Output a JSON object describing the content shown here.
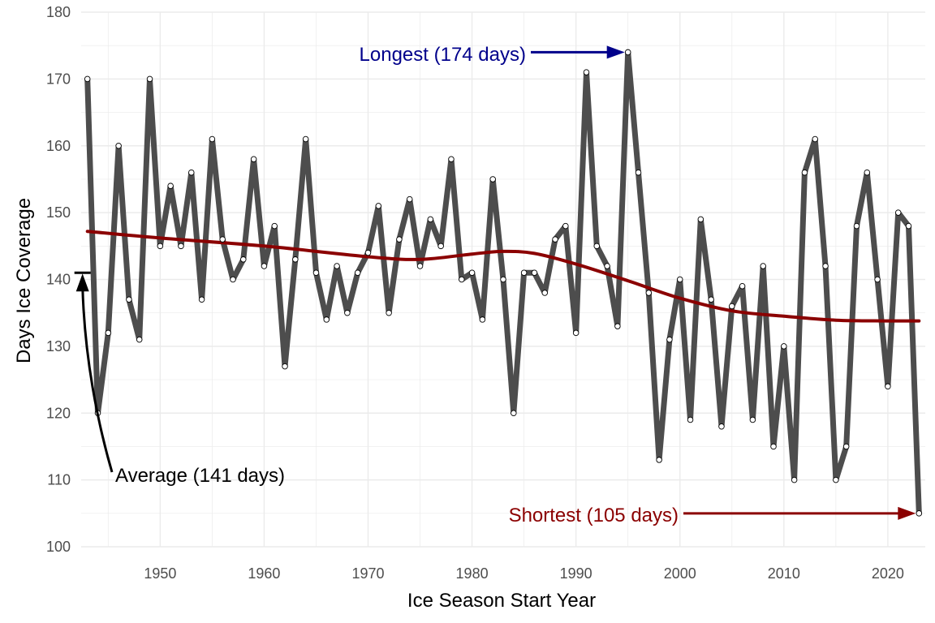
{
  "chart_data": {
    "type": "line",
    "xlabel": "Ice Season Start Year",
    "ylabel": "Days Ice Coverage",
    "xlim": [
      1943,
      2023
    ],
    "ylim": [
      100,
      180
    ],
    "x_ticks": [
      1950,
      1960,
      1970,
      1980,
      1990,
      2000,
      2010,
      2020
    ],
    "y_ticks": [
      100,
      110,
      120,
      130,
      140,
      150,
      160,
      170,
      180
    ],
    "grid": true,
    "colors": {
      "series": "#4d4d4d",
      "trend": "#8b0000",
      "longest": "#00008b",
      "shortest": "#8b0000",
      "average": "#000000",
      "grid": "#ebebeb"
    },
    "series": [
      {
        "x": [
          1943,
          1944,
          1945,
          1946,
          1947,
          1948,
          1949,
          1950,
          1951,
          1952,
          1953,
          1954,
          1955,
          1956,
          1957,
          1958,
          1959,
          1960,
          1961,
          1962,
          1963,
          1964,
          1965,
          1966,
          1967,
          1968,
          1969,
          1970,
          1971,
          1972,
          1973,
          1974,
          1975,
          1976,
          1977,
          1978,
          1979,
          1980,
          1981,
          1982,
          1983,
          1984,
          1985,
          1986,
          1987,
          1988,
          1989,
          1990,
          1991,
          1992,
          1993,
          1994,
          1995,
          1996,
          1997,
          1998,
          1999,
          2000,
          2001,
          2002,
          2003,
          2004,
          2005,
          2006,
          2007,
          2008,
          2009,
          2010,
          2011,
          2012,
          2013,
          2014,
          2015,
          2016,
          2017,
          2018,
          2019,
          2020,
          2021,
          2022,
          2023
        ],
        "values": [
          170,
          120,
          132,
          160,
          137,
          131,
          170,
          145,
          154,
          145,
          156,
          137,
          161,
          146,
          140,
          143,
          158,
          142,
          148,
          127,
          143,
          161,
          141,
          134,
          142,
          135,
          141,
          144,
          151,
          135,
          146,
          152,
          142,
          149,
          145,
          158,
          140,
          141,
          134,
          155,
          140,
          120,
          141,
          141,
          138,
          146,
          148,
          132,
          171,
          145,
          142,
          133,
          174,
          156,
          138,
          113,
          131,
          140,
          119,
          149,
          137,
          118,
          136,
          139,
          119,
          142,
          115,
          130,
          110,
          156,
          161,
          142,
          110,
          115,
          148,
          156,
          140,
          124,
          150,
          148,
          105
        ]
      }
    ],
    "trend": {
      "x": [
        1943,
        1950,
        1960,
        1970,
        1975,
        1980,
        1983,
        1986,
        1990,
        1995,
        2000,
        2005,
        2010,
        2015,
        2020,
        2023
      ],
      "values": [
        147.2,
        146.2,
        145.0,
        143.4,
        143.0,
        143.8,
        144.2,
        143.9,
        142.3,
        139.8,
        137.2,
        135.3,
        134.5,
        133.9,
        133.8,
        133.8
      ]
    },
    "annotations": {
      "longest": {
        "label": "Longest (174 days)",
        "x": 1995,
        "y": 174
      },
      "shortest": {
        "label": "Shortest (105 days)",
        "x": 2023,
        "y": 105
      },
      "average": {
        "label": "Average (141 days)",
        "x": 1943,
        "y": 141
      }
    }
  }
}
